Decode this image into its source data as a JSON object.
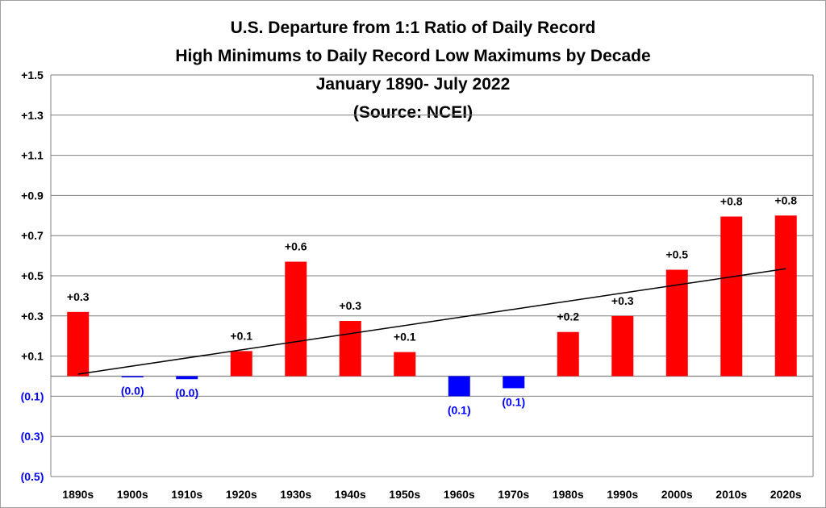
{
  "chart_data": {
    "type": "bar",
    "title_lines": [
      "U.S. Departure from 1:1 Ratio of Daily Record",
      "High Minimums to Daily Record Low Maximums by Decade",
      "January 1890- July 2022",
      "(Source: NCEI)"
    ],
    "categories": [
      "1890s",
      "1900s",
      "1910s",
      "1920s",
      "1930s",
      "1940s",
      "1950s",
      "1960s",
      "1970s",
      "1980s",
      "1990s",
      "2000s",
      "2010s",
      "2020s"
    ],
    "values": [
      0.32,
      -0.005,
      -0.015,
      0.125,
      0.57,
      0.275,
      0.12,
      -0.1,
      -0.06,
      0.22,
      0.3,
      0.53,
      0.795,
      0.8
    ],
    "data_labels": [
      "+0.3",
      "(0.0)",
      "(0.0)",
      "+0.1",
      "+0.6",
      "+0.3",
      "+0.1",
      "(0.1)",
      "(0.1)",
      "+0.2",
      "+0.3",
      "+0.5",
      "+0.8",
      "+0.8"
    ],
    "ylim": [
      -0.5,
      1.5
    ],
    "yticks": [
      1.5,
      1.3,
      1.1,
      0.9,
      0.7,
      0.5,
      0.3,
      0.1,
      -0.1,
      -0.3,
      -0.5
    ],
    "ytick_labels": [
      "+1.5",
      "+1.3",
      "+1.1",
      "+0.9",
      "+0.7",
      "+0.5",
      "+0.3",
      "+0.1",
      "(0.1)",
      "(0.3)",
      "(0.5)"
    ],
    "trendline": {
      "start": 0.01,
      "end": 0.535
    },
    "grid": true,
    "legend": "none",
    "colors": {
      "positive": "#ff0000",
      "negative": "#0000ff",
      "positive_label": "#000000",
      "negative_label": "#0000ff",
      "grid": "#7f7f7f",
      "trend": "#000000"
    }
  }
}
